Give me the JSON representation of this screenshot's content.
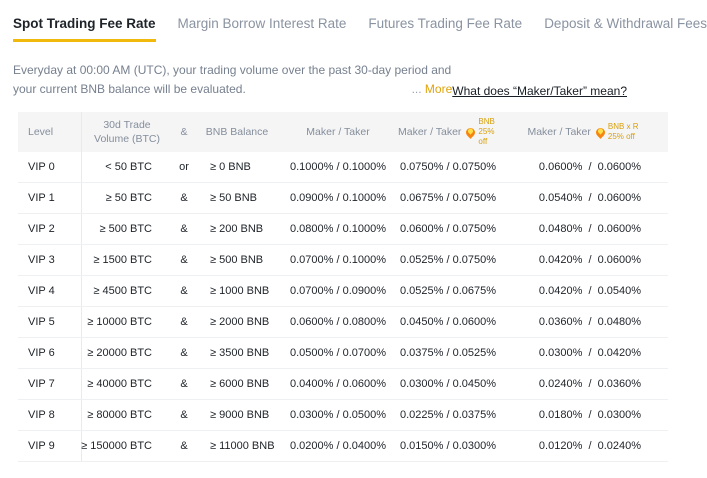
{
  "tabs": {
    "items": [
      {
        "label": "Spot Trading Fee Rate",
        "active": true
      },
      {
        "label": "Margin Borrow Interest Rate",
        "active": false
      },
      {
        "label": "Futures Trading Fee Rate",
        "active": false
      },
      {
        "label": "Deposit & Withdrawal Fees",
        "active": false
      }
    ]
  },
  "notice": {
    "text": "Everyday at 00:00 AM (UTC), your trading volume over the past 30-day period and your current BNB balance will be evaluated.",
    "ellipsis": "...",
    "more_label": "More",
    "maker_taker_link": "What does “Maker/Taker” mean?"
  },
  "fee_table": {
    "headers": {
      "level": "Level",
      "volume": "30d Trade\nVolume (BTC)",
      "logic": "&",
      "bnb_balance": "BNB Balance",
      "maker_taker": "Maker /  Taker",
      "maker_taker_bnb": "Maker  /  Taker",
      "bnb_badge": "BNB\n25% off",
      "maker_taker_ref": "Maker  /  Taker",
      "ref_badge": "BNB x R\n25% off"
    },
    "rows": [
      {
        "level": "VIP 0",
        "volume": "< 50 BTC",
        "logic": "or",
        "bnb": "≥ 0 BNB",
        "mt": "0.1000% / 0.1000%",
        "mt_bnb": "0.0750% / 0.0750%",
        "mt_ref": "0.0600%  /  0.0600%"
      },
      {
        "level": "VIP 1",
        "volume": "≥ 50 BTC",
        "logic": "&",
        "bnb": "≥ 50 BNB",
        "mt": "0.0900% / 0.1000%",
        "mt_bnb": "0.0675% / 0.0750%",
        "mt_ref": "0.0540%  /  0.0600%"
      },
      {
        "level": "VIP 2",
        "volume": "≥ 500 BTC",
        "logic": "&",
        "bnb": "≥ 200 BNB",
        "mt": "0.0800% / 0.1000%",
        "mt_bnb": "0.0600% / 0.0750%",
        "mt_ref": "0.0480%  /  0.0600%"
      },
      {
        "level": "VIP 3",
        "volume": "≥ 1500 BTC",
        "logic": "&",
        "bnb": "≥ 500 BNB",
        "mt": "0.0700% / 0.1000%",
        "mt_bnb": "0.0525% / 0.0750%",
        "mt_ref": "0.0420%  /  0.0600%"
      },
      {
        "level": "VIP 4",
        "volume": "≥ 4500 BTC",
        "logic": "&",
        "bnb": "≥ 1000 BNB",
        "mt": "0.0700% / 0.0900%",
        "mt_bnb": "0.0525% / 0.0675%",
        "mt_ref": "0.0420%  /  0.0540%"
      },
      {
        "level": "VIP 5",
        "volume": "≥ 10000 BTC",
        "logic": "&",
        "bnb": "≥ 2000 BNB",
        "mt": "0.0600% / 0.0800%",
        "mt_bnb": "0.0450% / 0.0600%",
        "mt_ref": "0.0360%  /  0.0480%"
      },
      {
        "level": "VIP 6",
        "volume": "≥ 20000 BTC",
        "logic": "&",
        "bnb": "≥ 3500 BNB",
        "mt": "0.0500% / 0.0700%",
        "mt_bnb": "0.0375% / 0.0525%",
        "mt_ref": "0.0300%  /  0.0420%"
      },
      {
        "level": "VIP 7",
        "volume": "≥ 40000 BTC",
        "logic": "&",
        "bnb": "≥ 6000 BNB",
        "mt": "0.0400% / 0.0600%",
        "mt_bnb": "0.0300% / 0.0450%",
        "mt_ref": "0.0240%  /  0.0360%"
      },
      {
        "level": "VIP 8",
        "volume": "≥ 80000 BTC",
        "logic": "&",
        "bnb": "≥ 9000 BNB",
        "mt": "0.0300% / 0.0500%",
        "mt_bnb": "0.0225% / 0.0375%",
        "mt_ref": "0.0180%  /  0.0300%"
      },
      {
        "level": "VIP 9",
        "volume": "≥ 150000 BTC",
        "logic": "&",
        "bnb": "≥ 11000 BNB",
        "mt": "0.0200% / 0.0400%",
        "mt_bnb": "0.0150% / 0.0300%",
        "mt_ref": "0.0120%  /  0.0240%"
      }
    ]
  },
  "colors": {
    "accent": "#F0B90B",
    "flame_orange": "#F6850F",
    "flame_inner": "#FDE04B",
    "discount_gold": "#D9A00B",
    "header_bg": "#F5F5F5",
    "header_text": "#848E9C",
    "body_text": "#1E2329",
    "muted_text": "#76808F",
    "row_border": "#EEF0F2"
  }
}
